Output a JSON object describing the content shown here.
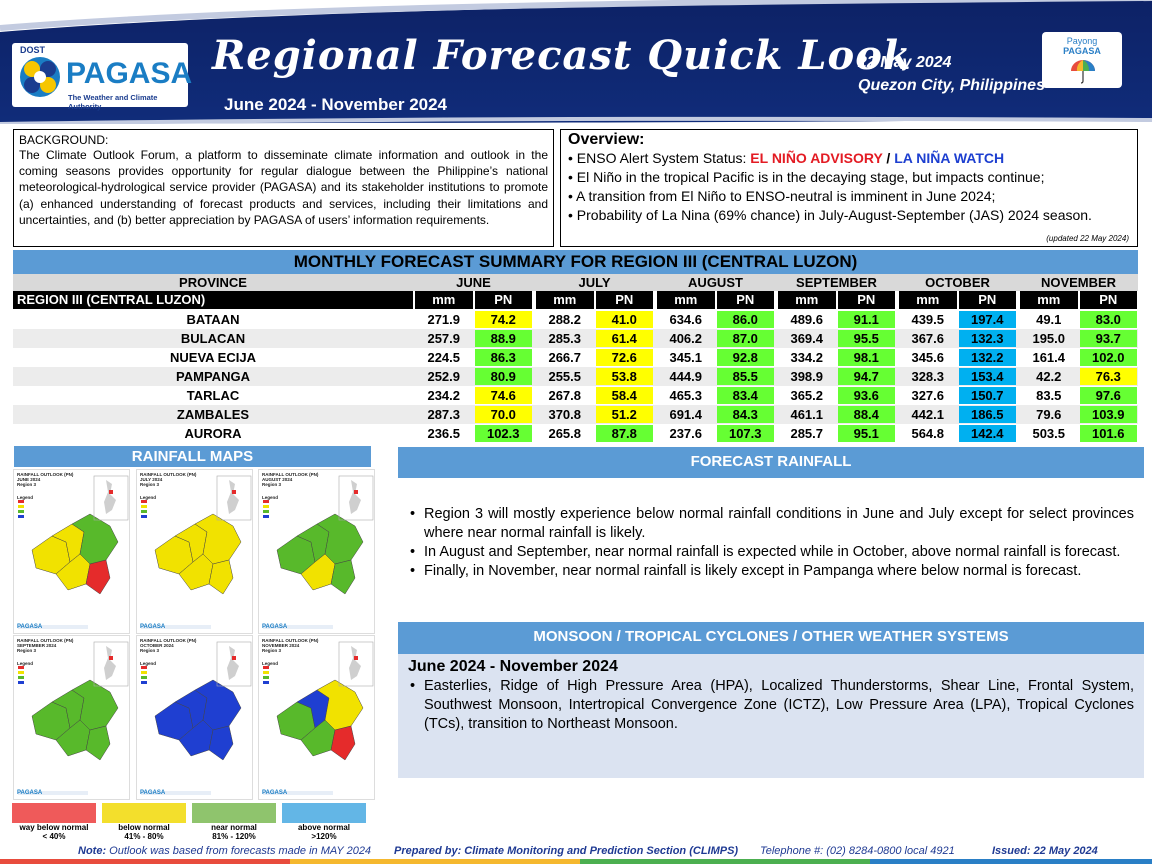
{
  "header": {
    "logo_dost": "DOST",
    "logo_name": "PAGASA",
    "logo_tagline": "The Weather and Climate Authority",
    "title": "Regional Forecast Quick Look",
    "period": "June 2024 - November 2024",
    "date": "22 May 2024",
    "place": "Quezon City, Philippines",
    "payong_1": "Payong",
    "payong_2": "PAGASA"
  },
  "background": {
    "heading": "BACKGROUND:",
    "text": "The Climate Outlook Forum, a platform to disseminate climate information and outlook in the coming seasons provides opportunity for regular dialogue between the Philippine’s national meteorological-hydrological service provider (PAGASA) and its stakeholder institutions to promote (a) enhanced understanding of forecast products and services, including their limitations and uncertainties, and (b) better appreciation by PAGASA of users’ information requirements."
  },
  "overview": {
    "heading": "Overview:",
    "enso_prefix": "• ENSO Alert System Status: ",
    "advisory": "EL NIÑO ADVISORY",
    "slash": " / ",
    "watch": "LA NIÑA WATCH",
    "line2": "• El Niño in the tropical Pacific is in the decaying stage, but impacts continue;",
    "line3": "• A transition  from El Niño to ENSO-neutral is imminent in June 2024;",
    "line4": "• Probability  of La Nina (69% chance) in July-August-September (JAS) 2024 season.",
    "updated": "(updated 22 May 2024)"
  },
  "table": {
    "title": "MONTHLY FORECAST SUMMARY FOR REGION III (CENTRAL LUZON)",
    "province_header": "PROVINCE",
    "region_label": "REGION III (CENTRAL LUZON)",
    "months": [
      "JUNE",
      "JULY",
      "AUGUST",
      "SEPTEMBER",
      "OCTOBER",
      "NOVEMBER"
    ],
    "mm_label": "mm",
    "pn_label": "PN",
    "rows": [
      {
        "name": "BATAAN",
        "mm": [
          "271.9",
          "288.2",
          "634.6",
          "489.6",
          "439.5",
          "49.1"
        ],
        "pn": [
          "74.2",
          "41.0",
          "86.0",
          "91.1",
          "197.4",
          "83.0"
        ]
      },
      {
        "name": "BULACAN",
        "mm": [
          "257.9",
          "285.3",
          "406.2",
          "369.4",
          "367.6",
          "195.0"
        ],
        "pn": [
          "88.9",
          "61.4",
          "87.0",
          "95.5",
          "132.3",
          "93.7"
        ]
      },
      {
        "name": "NUEVA ECIJA",
        "mm": [
          "224.5",
          "266.7",
          "345.1",
          "334.2",
          "345.6",
          "161.4"
        ],
        "pn": [
          "86.3",
          "72.6",
          "92.8",
          "98.1",
          "132.2",
          "102.0"
        ]
      },
      {
        "name": "PAMPANGA",
        "mm": [
          "252.9",
          "255.5",
          "444.9",
          "398.9",
          "328.3",
          "42.2"
        ],
        "pn": [
          "80.9",
          "53.8",
          "85.5",
          "94.7",
          "153.4",
          "76.3"
        ]
      },
      {
        "name": "TARLAC",
        "mm": [
          "234.2",
          "267.8",
          "465.3",
          "365.2",
          "327.6",
          "83.5"
        ],
        "pn": [
          "74.6",
          "58.4",
          "83.4",
          "93.6",
          "150.7",
          "97.6"
        ]
      },
      {
        "name": "ZAMBALES",
        "mm": [
          "287.3",
          "370.8",
          "691.4",
          "461.1",
          "442.1",
          "79.6"
        ],
        "pn": [
          "70.0",
          "51.2",
          "84.3",
          "88.4",
          "186.5",
          "103.9"
        ]
      },
      {
        "name": "AURORA",
        "mm": [
          "236.5",
          "265.8",
          "237.6",
          "285.7",
          "564.8",
          "503.5"
        ],
        "pn": [
          "102.3",
          "87.8",
          "107.3",
          "95.1",
          "142.4",
          "101.6"
        ]
      }
    ],
    "category_colors": {
      "below": "#ffff00",
      "near": "#66ff33",
      "above": "#00b0f0",
      "way_below": "#ff0000"
    }
  },
  "rainfall_maps": {
    "title": "RAINFALL MAPS",
    "maps": [
      {
        "t1": "RAINFALL OUTLOOK (PN)",
        "t2": "JUNE 2024",
        "t3": "Region 3",
        "legend": "Legend"
      },
      {
        "t1": "RAINFALL OUTLOOK (PN)",
        "t2": "JULY 2024",
        "t3": "Region 3",
        "legend": "Legend"
      },
      {
        "t1": "RAINFALL OUTLOOK (PN)",
        "t2": "AUGUST 2024",
        "t3": "Region 3",
        "legend": "Legend"
      },
      {
        "t1": "RAINFALL OUTLOOK (PN)",
        "t2": "SEPTEMBER 2024",
        "t3": "Region 3",
        "legend": "Legend"
      },
      {
        "t1": "RAINFALL OUTLOOK (PN)",
        "t2": "OCTOBER 2024",
        "t3": "Region 3",
        "legend": "Legend"
      },
      {
        "t1": "RAINFALL OUTLOOK (PN)",
        "t2": "NOVEMBER 2024",
        "t3": "Region 3",
        "legend": "Legend"
      }
    ],
    "map_footer": "PAGASA",
    "legend": [
      {
        "label": "way below normal",
        "range": "< 40%",
        "color": "#ef5a5a"
      },
      {
        "label": "below normal",
        "range": "41%  - 80%",
        "color": "#f3df2c"
      },
      {
        "label": "near normal",
        "range": "81% - 120%",
        "color": "#8fc46d"
      },
      {
        "label": "above normal",
        "range": ">120%",
        "color": "#63b6e6"
      }
    ]
  },
  "forecast_rainfall": {
    "title": "FORECAST RAINFALL",
    "bullets": [
      "Region 3 will mostly experience below normal rainfall conditions in June and July except for select provinces where near normal rainfall is likely.",
      "In August and September, near normal rainfall is expected while in October, above normal rainfall is forecast.",
      "Finally, in November, near normal rainfall is likely except in Pampanga where below normal is forecast."
    ]
  },
  "monsoon": {
    "title": "MONSOON  / TROPICAL CYCLONES / OTHER WEATHER SYSTEMS",
    "period": "June 2024 - November 2024",
    "bullet": "Easterlies, Ridge of High Pressure Area (HPA), Localized Thunderstorms, Shear Line, Frontal System, Southwest Monsoon, Intertropical Convergence Zone (ICTZ), Low Pressure Area (LPA), Tropical Cyclones (TCs), transition to Northeast Monsoon."
  },
  "footer": {
    "note_label": "Note:",
    "note_text": " Outlook was based from forecasts made in MAY 2024",
    "prepared": "Prepared by: Climate Monitoring and Prediction Section (CLIMPS)",
    "telephone": "Telephone #: (02) 8284-0800 local 4921",
    "issued": "Issued:  22 May 2024"
  }
}
